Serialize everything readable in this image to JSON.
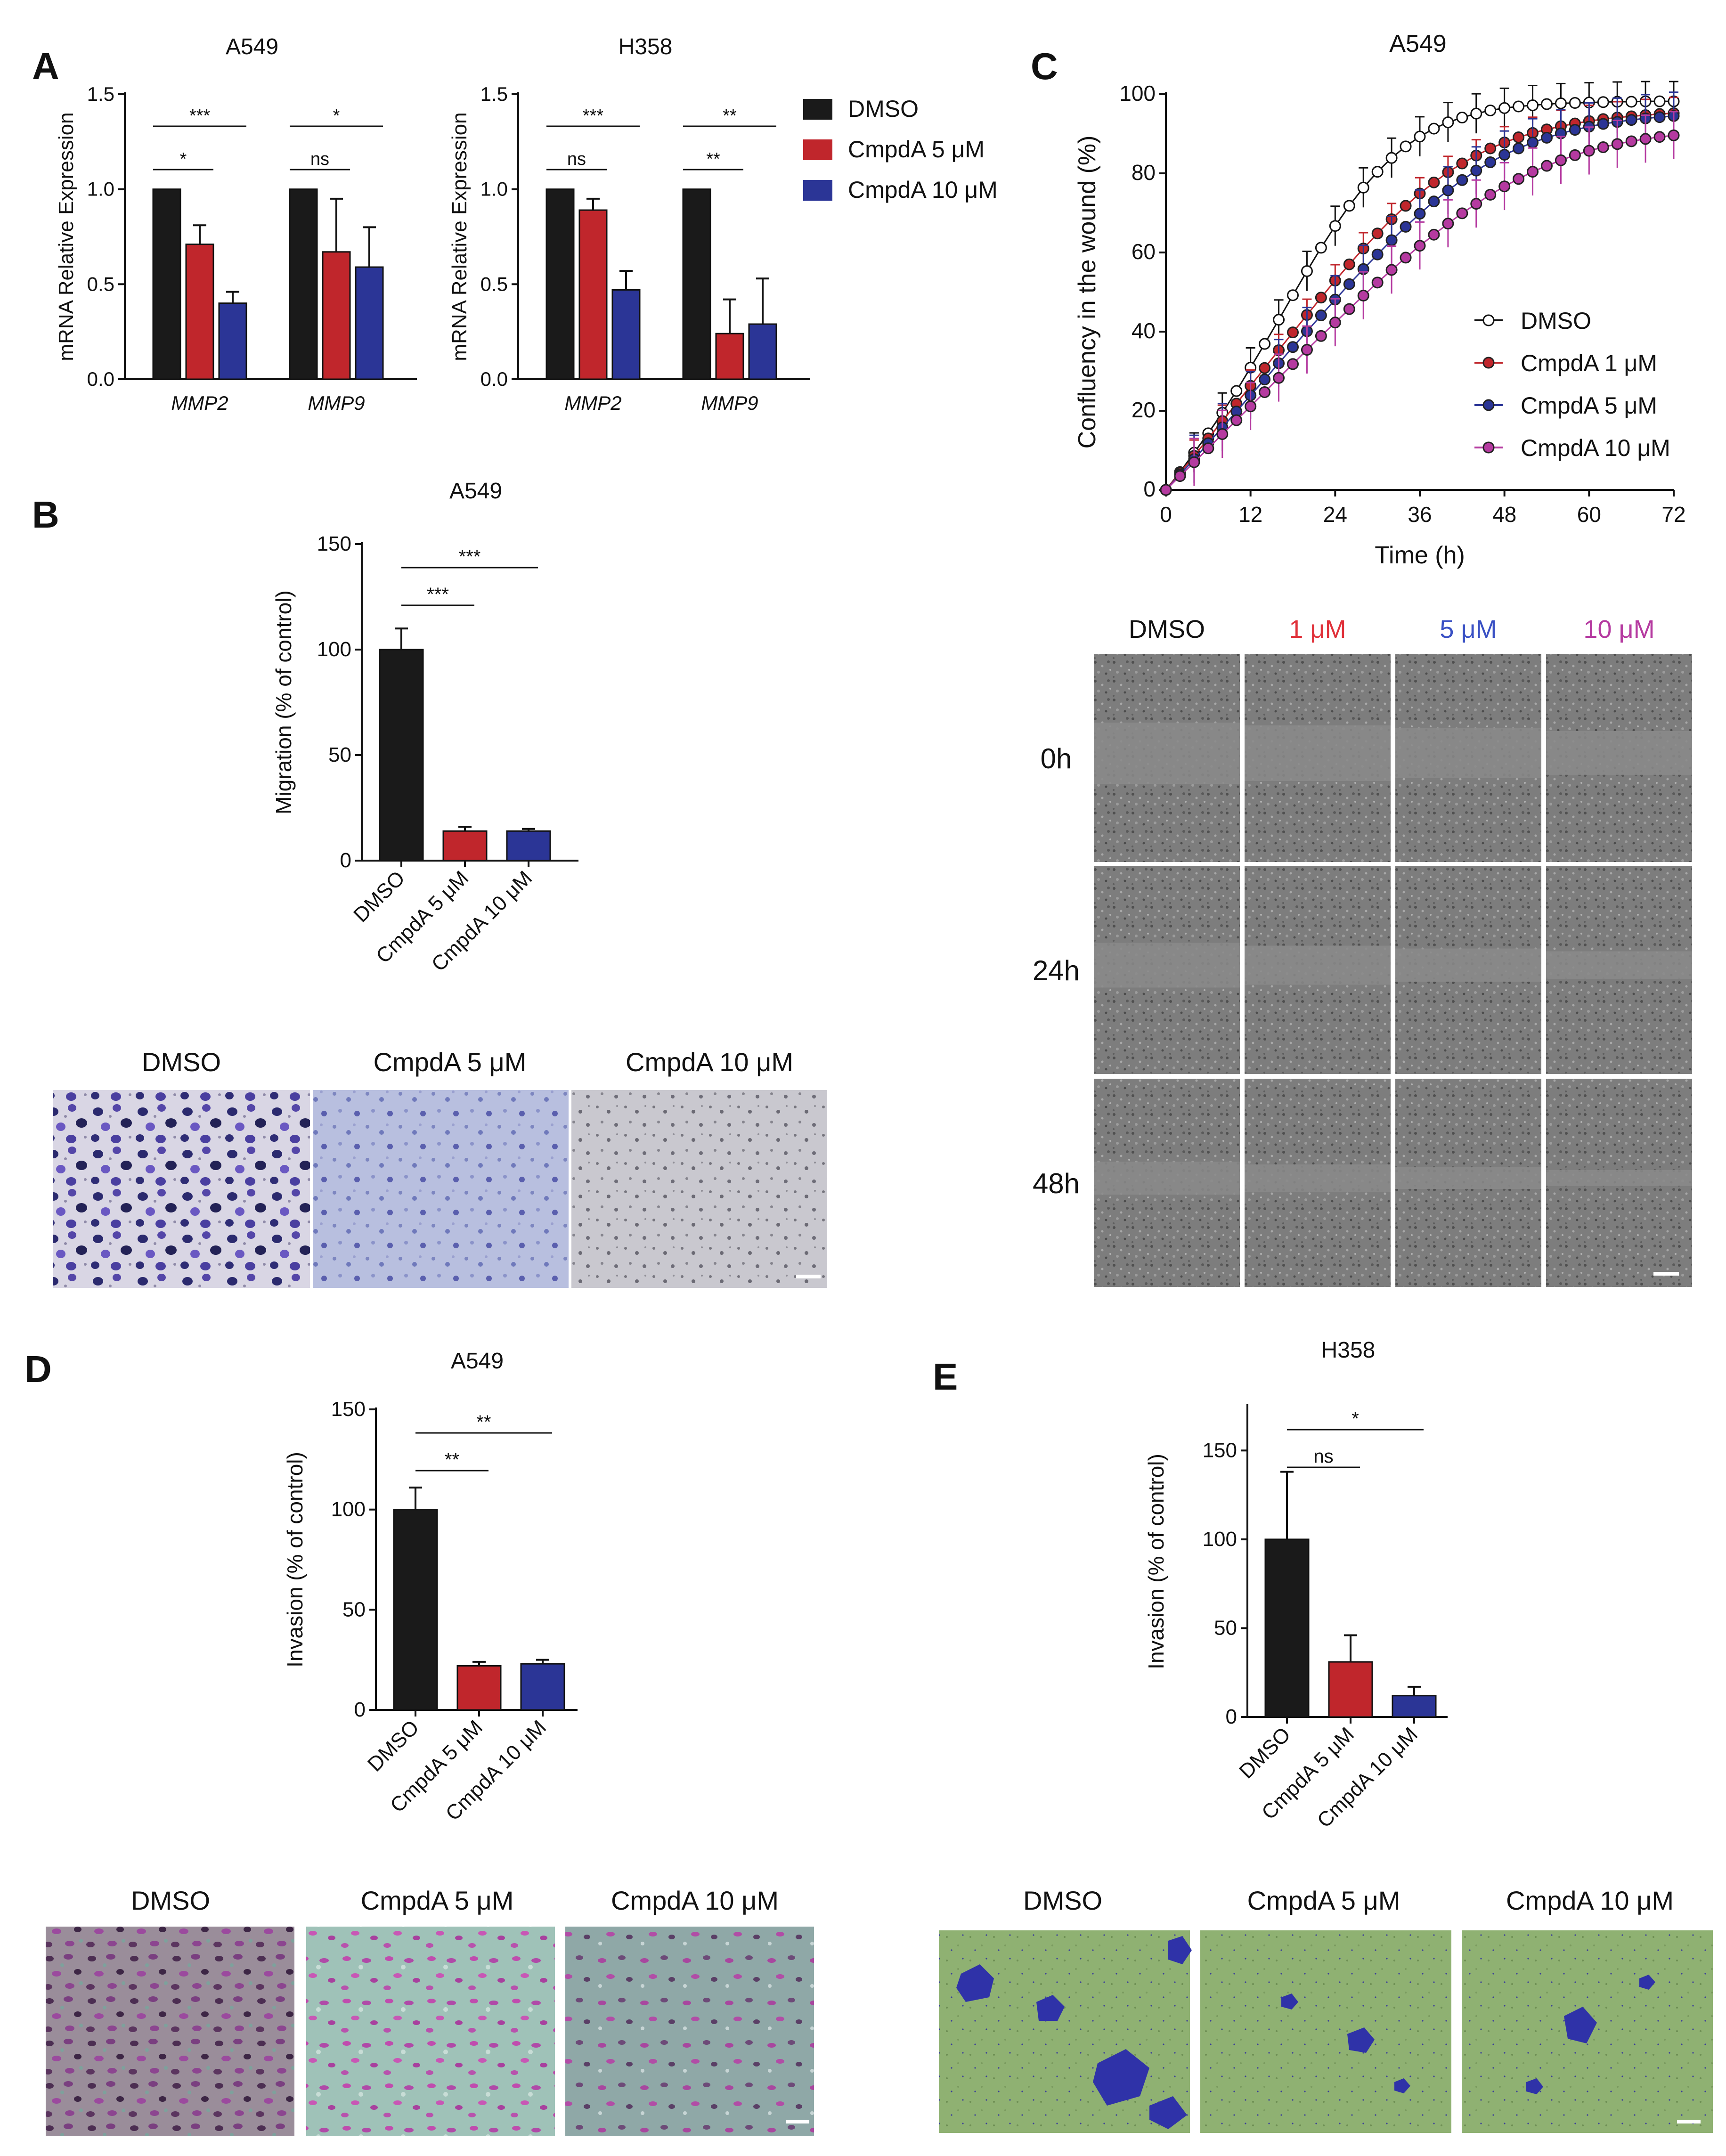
{
  "figure": {
    "colors": {
      "dmso": "#1a1a1a",
      "c5": "#c0262c",
      "c10": "#2b3596",
      "c1": "#c0262c",
      "c5wound": "#2b3596",
      "c10wound": "#b53aa0",
      "red": "#e0313a",
      "blue": "#3950c4",
      "magenta": "#b53aa0"
    },
    "legend_A": [
      "DMSO",
      "CmpdA 5 μM",
      "CmpdA 10 μM"
    ],
    "legend_C": [
      "DMSO",
      "CmpdA 1 μM",
      "CmpdA 5 μM",
      "CmpdA 10 μM"
    ],
    "cond3": [
      "DMSO",
      "CmpdA 5 μM",
      "CmpdA 10 μM"
    ],
    "wound_cols": [
      "DMSO",
      "1 μM",
      "5 μM",
      "10 μM"
    ],
    "wound_rows": [
      "0h",
      "24h",
      "48h"
    ]
  },
  "panels": {
    "A": "A",
    "B": "B",
    "C": "C",
    "D": "D",
    "E": "E"
  },
  "chart_data": [
    {
      "id": "A1",
      "type": "bar",
      "title": "A549",
      "ylabel": "mRNA Relative Expression",
      "ylim": [
        0,
        1.5
      ],
      "yticks": [
        "0.0",
        "0.5",
        "1.0",
        "1.5"
      ],
      "categories": [
        "MMP2",
        "MMP9"
      ],
      "series": [
        {
          "name": "DMSO",
          "values": [
            1.0,
            1.0
          ],
          "errors": [
            0,
            0
          ]
        },
        {
          "name": "CmpdA 5 μM",
          "values": [
            0.71,
            0.67
          ],
          "errors": [
            0.1,
            0.28
          ]
        },
        {
          "name": "CmpdA 10 μM",
          "values": [
            0.4,
            0.59
          ],
          "errors": [
            0.06,
            0.21
          ]
        }
      ],
      "significance": [
        {
          "group": 0,
          "from": 0,
          "to": 1,
          "label": "*"
        },
        {
          "group": 0,
          "from": 0,
          "to": 2,
          "label": "***"
        },
        {
          "group": 1,
          "from": 0,
          "to": 1,
          "label": "ns"
        },
        {
          "group": 1,
          "from": 0,
          "to": 2,
          "label": "*"
        }
      ]
    },
    {
      "id": "A2",
      "type": "bar",
      "title": "H358",
      "ylabel": "mRNA Relative Expression",
      "ylim": [
        0,
        1.5
      ],
      "yticks": [
        "0.0",
        "0.5",
        "1.0",
        "1.5"
      ],
      "categories": [
        "MMP2",
        "MMP9"
      ],
      "series": [
        {
          "name": "DMSO",
          "values": [
            1.0,
            1.0
          ],
          "errors": [
            0,
            0
          ]
        },
        {
          "name": "CmpdA 5 μM",
          "values": [
            0.89,
            0.24
          ],
          "errors": [
            0.06,
            0.18
          ]
        },
        {
          "name": "CmpdA 10 μM",
          "values": [
            0.47,
            0.29
          ],
          "errors": [
            0.1,
            0.24
          ]
        }
      ],
      "significance": [
        {
          "group": 0,
          "from": 0,
          "to": 1,
          "label": "ns"
        },
        {
          "group": 0,
          "from": 0,
          "to": 2,
          "label": "***"
        },
        {
          "group": 1,
          "from": 0,
          "to": 1,
          "label": "**"
        },
        {
          "group": 1,
          "from": 0,
          "to": 2,
          "label": "**"
        }
      ]
    },
    {
      "id": "B",
      "type": "bar",
      "title": "A549",
      "ylabel": "Migration (% of control)",
      "ylim": [
        0,
        150
      ],
      "yticks": [
        "0",
        "50",
        "100",
        "150"
      ],
      "categories": [
        "DMSO",
        "CmpdA 5 μM",
        "CmpdA 10 μM"
      ],
      "values": [
        100,
        14,
        14
      ],
      "errors": [
        10,
        2,
        1
      ],
      "significance": [
        {
          "from": 0,
          "to": 1,
          "label": "***"
        },
        {
          "from": 0,
          "to": 2,
          "label": "***"
        }
      ]
    },
    {
      "id": "C",
      "type": "line",
      "title": "A549",
      "xlabel": "Time (h)",
      "ylabel": "Confluency in the wound (%)",
      "xlim": [
        0,
        72
      ],
      "ylim": [
        0,
        100
      ],
      "xticks": [
        "0",
        "12",
        "24",
        "36",
        "48",
        "60",
        "72"
      ],
      "yticks": [
        "0",
        "20",
        "40",
        "60",
        "80",
        "100"
      ],
      "x": [
        0,
        2,
        4,
        6,
        8,
        10,
        12,
        14,
        16,
        18,
        20,
        22,
        24,
        26,
        28,
        30,
        32,
        34,
        36,
        38,
        40,
        42,
        44,
        46,
        48,
        50,
        52,
        54,
        56,
        58,
        60,
        62,
        64,
        66,
        68,
        70,
        72
      ],
      "series": [
        {
          "name": "DMSO",
          "values": [
            0,
            4.5,
            9.4,
            14.3,
            19.5,
            25.0,
            30.9,
            36.9,
            43.0,
            49.2,
            55.3,
            61.2,
            66.7,
            71.8,
            76.4,
            80.4,
            83.9,
            86.8,
            89.3,
            91.3,
            92.9,
            94.1,
            95.1,
            95.9,
            96.5,
            96.9,
            97.2,
            97.5,
            97.7,
            97.8,
            97.9,
            98.0,
            98.1,
            98.1,
            98.2,
            98.2,
            98.2
          ],
          "error": 5
        },
        {
          "name": "CmpdA 1 μM",
          "values": [
            0,
            4.3,
            8.6,
            13.0,
            17.4,
            21.8,
            26.3,
            30.8,
            35.3,
            39.8,
            44.2,
            48.6,
            52.9,
            57.0,
            61.0,
            64.8,
            68.4,
            71.8,
            74.9,
            77.7,
            80.3,
            82.5,
            84.5,
            86.3,
            87.8,
            89.1,
            90.2,
            91.1,
            91.9,
            92.6,
            93.2,
            93.7,
            94.1,
            94.4,
            94.7,
            95.0,
            95.2
          ],
          "error": 4
        },
        {
          "name": "CmpdA 5 μM",
          "values": [
            0,
            3.9,
            7.8,
            11.8,
            15.8,
            19.8,
            23.9,
            27.9,
            32.0,
            36.1,
            40.1,
            44.1,
            48.1,
            52.0,
            55.8,
            59.5,
            63.1,
            66.5,
            69.8,
            72.9,
            75.7,
            78.3,
            80.7,
            82.8,
            84.7,
            86.3,
            87.8,
            89.0,
            90.1,
            91.0,
            91.8,
            92.5,
            93.0,
            93.5,
            93.9,
            94.2,
            94.5
          ],
          "error": 6
        },
        {
          "name": "CmpdA 10 μM",
          "values": [
            0,
            3.5,
            7.0,
            10.5,
            14.1,
            17.6,
            21.1,
            24.7,
            28.3,
            31.8,
            35.4,
            38.9,
            42.3,
            45.7,
            49.1,
            52.4,
            55.6,
            58.7,
            61.7,
            64.5,
            67.3,
            69.9,
            72.3,
            74.6,
            76.7,
            78.6,
            80.4,
            81.9,
            83.3,
            84.6,
            85.7,
            86.6,
            87.4,
            88.1,
            88.7,
            89.2,
            89.6
          ],
          "error": 6
        }
      ],
      "legend": "center-right"
    },
    {
      "id": "D",
      "type": "bar",
      "title": "A549",
      "ylabel": "Invasion (% of control)",
      "ylim": [
        0,
        150
      ],
      "yticks": [
        "0",
        "50",
        "100",
        "150"
      ],
      "categories": [
        "DMSO",
        "CmpdA 5 μM",
        "CmpdA 10 μM"
      ],
      "values": [
        100,
        22,
        23
      ],
      "errors": [
        11,
        2,
        2
      ],
      "significance": [
        {
          "from": 0,
          "to": 1,
          "label": "**"
        },
        {
          "from": 0,
          "to": 2,
          "label": "**"
        }
      ]
    },
    {
      "id": "E",
      "type": "bar",
      "title": "H358",
      "ylabel": "Invasion (% of control)",
      "ylim": [
        0,
        175
      ],
      "yticks": [
        "0",
        "50",
        "100",
        "150"
      ],
      "categories": [
        "DMSO",
        "CmpdA 5 μM",
        "CmpdA 10 μM"
      ],
      "values": [
        100,
        31,
        12
      ],
      "errors": [
        38,
        15,
        5
      ],
      "significance": [
        {
          "from": 0,
          "to": 1,
          "label": "ns"
        },
        {
          "from": 0,
          "to": 2,
          "label": "*"
        }
      ]
    }
  ]
}
